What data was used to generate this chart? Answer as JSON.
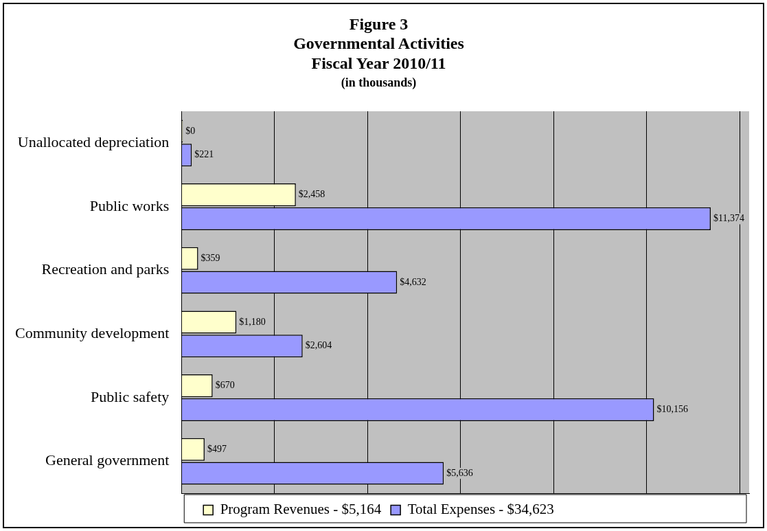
{
  "chart_data": {
    "type": "bar",
    "orientation": "horizontal",
    "title": "Figure 3\nGovernmental Activities\nFiscal Year 2010/11",
    "subtitle": "(in thousands)",
    "categories": [
      "Unallocated depreciation",
      "Public works",
      "Recreation and parks",
      "Community development",
      "Public safety",
      "General government"
    ],
    "series": [
      {
        "name": "Program Revenues - $5,164",
        "color": "#ffffcc",
        "values": [
          0,
          2458,
          359,
          1180,
          670,
          497
        ],
        "value_labels": [
          "$0",
          "$2,458",
          "$359",
          "$1,180",
          "$670",
          "$497"
        ]
      },
      {
        "name": "Total Expenses - $34,623",
        "color": "#9999ff",
        "values": [
          221,
          11374,
          4632,
          2604,
          10156,
          5636
        ],
        "value_labels": [
          "$221",
          "$11,374",
          "$4,632",
          "$2,604",
          "$10,156",
          "$5,636"
        ]
      }
    ],
    "xlim": [
      0,
      12200
    ],
    "xticks": [
      {
        "value": 0,
        "label": null
      },
      {
        "value": 2000,
        "label": null
      },
      {
        "value": 4000,
        "label": null
      },
      {
        "value": 6000,
        "label": null
      },
      {
        "value": 8000,
        "label": null
      },
      {
        "value": 10000,
        "label": null
      },
      {
        "value": 12000,
        "label": null
      }
    ],
    "grid": "x",
    "tick_labels": "y",
    "legend": "bottom"
  }
}
